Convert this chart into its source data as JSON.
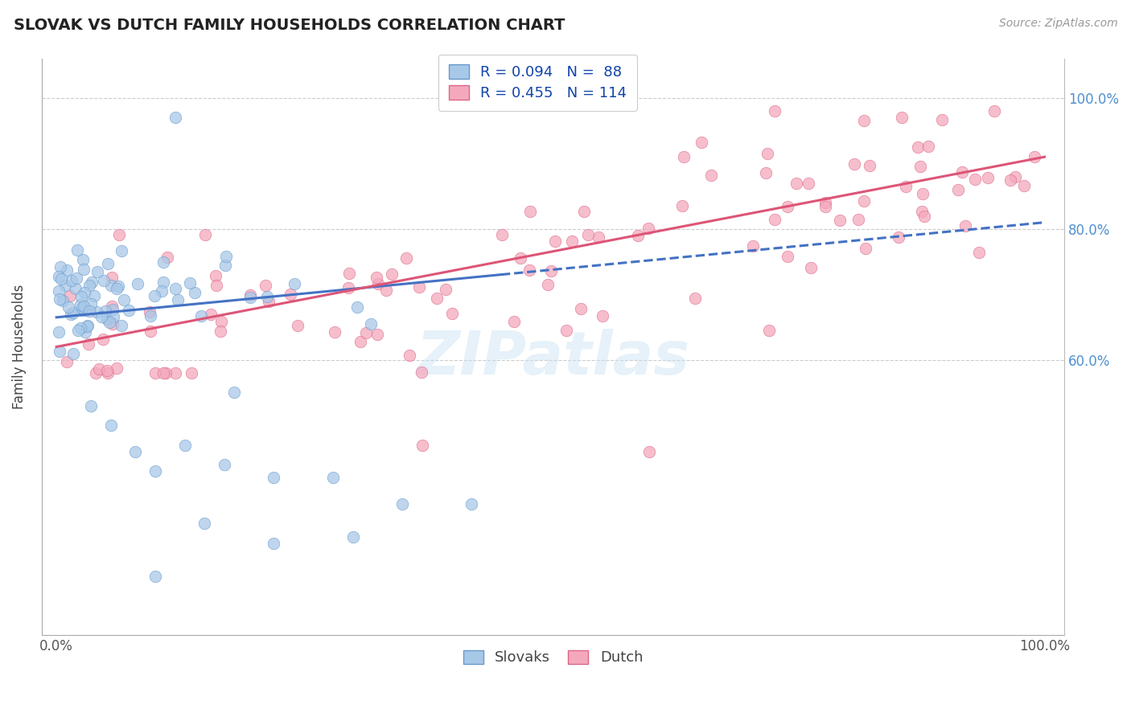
{
  "title": "SLOVAK VS DUTCH FAMILY HOUSEHOLDS CORRELATION CHART",
  "source": "Source: ZipAtlas.com",
  "ylabel": "Family Households",
  "blue_color": "#A8C8E8",
  "blue_edge": "#6699CC",
  "pink_color": "#F4A8BC",
  "pink_edge": "#DD6688",
  "blue_line": "#4472C4",
  "pink_line": "#DD5577",
  "ytick_vals": [
    0.6,
    0.8,
    1.0
  ],
  "ytick_labels": [
    "60.0%",
    "80.0%",
    "100.0%"
  ],
  "xtick_vals": [
    0.0,
    1.0
  ],
  "xtick_labels": [
    "0.0%",
    "100.0%"
  ],
  "xlim": [
    -0.015,
    1.02
  ],
  "ylim": [
    0.18,
    1.06
  ],
  "watermark": "ZIPatlas",
  "legend_text1": "R = 0.094   N =  88",
  "legend_text2": "R = 0.455   N = 114",
  "bottom_legend1": "Slovaks",
  "bottom_legend2": "Dutch"
}
